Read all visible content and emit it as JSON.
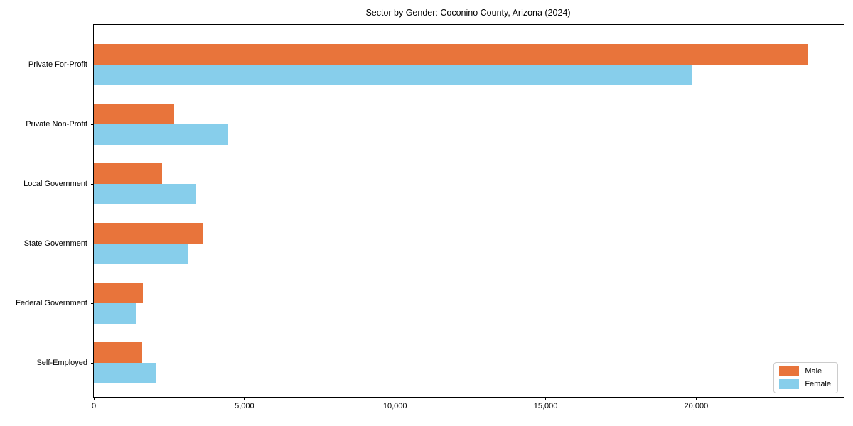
{
  "chart_data": {
    "type": "bar",
    "orientation": "horizontal",
    "title": "Sector by Gender: Coconino County, Arizona (2024)",
    "categories": [
      "Private For-Profit",
      "Private Non-Profit",
      "Local Government",
      "State Government",
      "Federal Government",
      "Self-Employed"
    ],
    "series": [
      {
        "name": "Male",
        "color": "#e8743b",
        "values": [
          23700,
          2660,
          2260,
          3610,
          1630,
          1610
        ]
      },
      {
        "name": "Female",
        "color": "#87ceeb",
        "values": [
          19850,
          4460,
          3400,
          3140,
          1420,
          2070
        ]
      }
    ],
    "xlabel": "",
    "ylabel": "",
    "xlim": [
      0,
      24900
    ],
    "x_ticks": [
      0,
      5000,
      10000,
      15000,
      20000
    ],
    "x_tick_labels": [
      "0",
      "5,000",
      "10,000",
      "15,000",
      "20,000"
    ],
    "grid": false,
    "legend": {
      "position": "lower right",
      "entries": [
        "Male",
        "Female"
      ]
    }
  }
}
